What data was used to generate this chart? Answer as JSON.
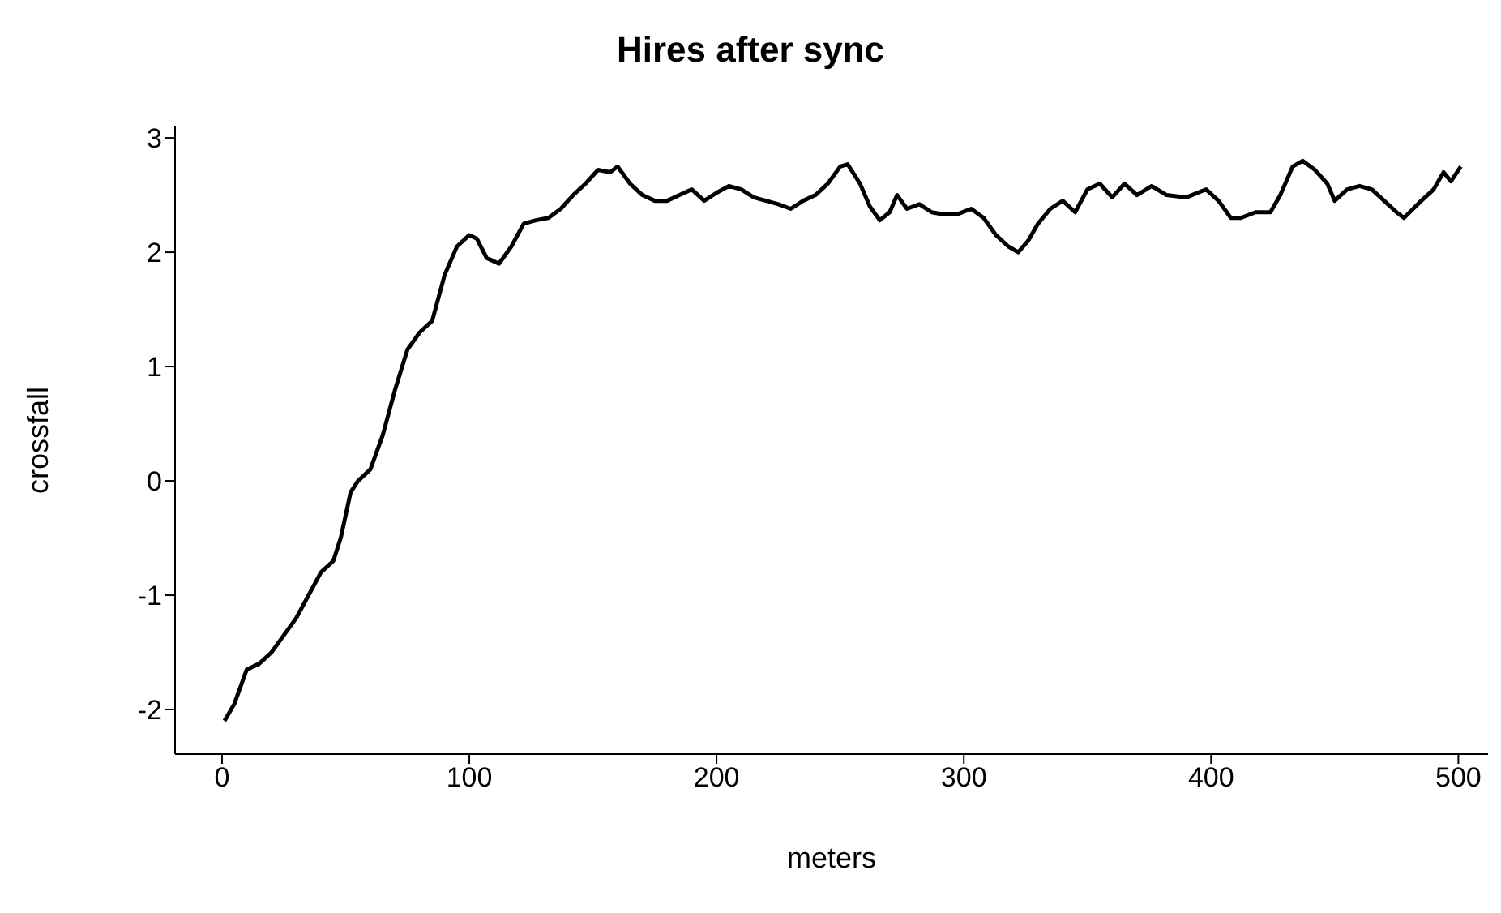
{
  "chart_data": {
    "type": "line",
    "title": "Hires after sync",
    "xlabel": "meters",
    "ylabel": "crossfall",
    "x": [
      1,
      5,
      10,
      15,
      20,
      25,
      30,
      35,
      40,
      45,
      48,
      52,
      55,
      60,
      65,
      70,
      75,
      80,
      85,
      90,
      95,
      100,
      103,
      107,
      112,
      117,
      122,
      127,
      132,
      137,
      142,
      147,
      152,
      157,
      160,
      165,
      170,
      175,
      180,
      185,
      190,
      195,
      200,
      205,
      210,
      215,
      220,
      225,
      230,
      235,
      240,
      245,
      250,
      253,
      258,
      262,
      266,
      270,
      273,
      277,
      282,
      287,
      292,
      297,
      303,
      308,
      313,
      318,
      322,
      326,
      330,
      335,
      340,
      345,
      350,
      355,
      360,
      365,
      370,
      376,
      382,
      390,
      398,
      403,
      408,
      412,
      418,
      424,
      428,
      433,
      437,
      442,
      447,
      450,
      455,
      460,
      465,
      470,
      475,
      478,
      485,
      490,
      494,
      497,
      501
    ],
    "series": [
      {
        "color": "#000000",
        "values": [
          -2.1,
          -1.95,
          -1.65,
          -1.6,
          -1.5,
          -1.35,
          -1.2,
          -1.0,
          -0.8,
          -0.7,
          -0.5,
          -0.1,
          0.0,
          0.1,
          0.4,
          0.8,
          1.15,
          1.3,
          1.4,
          1.8,
          2.05,
          2.15,
          2.12,
          1.95,
          1.9,
          2.05,
          2.25,
          2.28,
          2.3,
          2.38,
          2.5,
          2.6,
          2.72,
          2.7,
          2.75,
          2.6,
          2.5,
          2.45,
          2.45,
          2.5,
          2.55,
          2.45,
          2.52,
          2.58,
          2.55,
          2.48,
          2.45,
          2.42,
          2.38,
          2.45,
          2.5,
          2.6,
          2.75,
          2.77,
          2.6,
          2.4,
          2.28,
          2.35,
          2.5,
          2.38,
          2.42,
          2.35,
          2.33,
          2.33,
          2.38,
          2.3,
          2.15,
          2.05,
          2.0,
          2.1,
          2.25,
          2.38,
          2.45,
          2.35,
          2.55,
          2.6,
          2.48,
          2.6,
          2.5,
          2.58,
          2.5,
          2.48,
          2.55,
          2.45,
          2.3,
          2.3,
          2.35,
          2.35,
          2.5,
          2.75,
          2.8,
          2.72,
          2.6,
          2.45,
          2.55,
          2.58,
          2.55,
          2.45,
          2.35,
          2.3,
          2.45,
          2.55,
          2.7,
          2.62,
          2.75
        ]
      }
    ],
    "xlim": [
      -19,
      512
    ],
    "xticks": [
      0,
      100,
      200,
      300,
      400,
      500
    ],
    "ylim": [
      -2.39,
      3.1
    ],
    "yticks": [
      -2,
      -1,
      0,
      1,
      2,
      3
    ],
    "grid": false,
    "legend": false,
    "marker": "none",
    "line_style": "solid"
  }
}
